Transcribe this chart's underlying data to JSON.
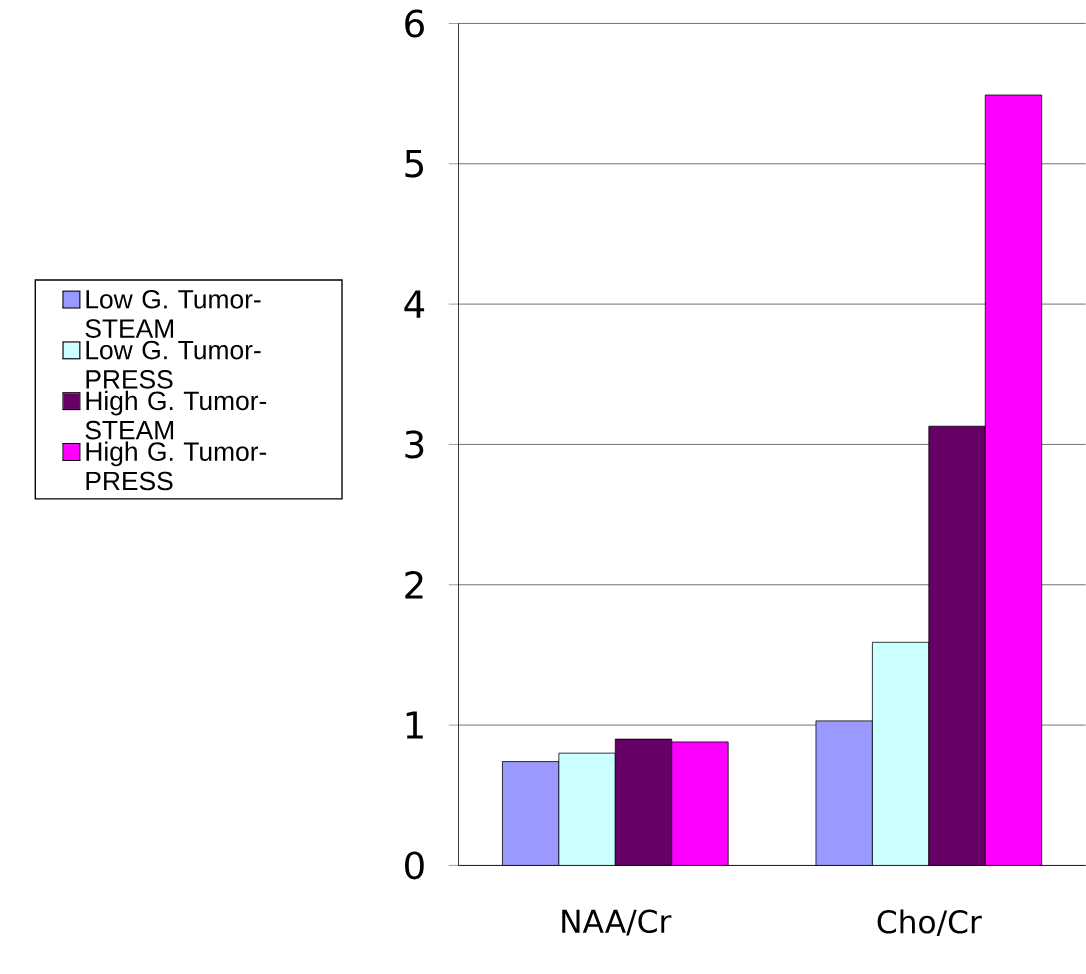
{
  "chart_data": {
    "type": "bar",
    "categories": [
      "NAA/Cr",
      "Cho/Cr"
    ],
    "series": [
      {
        "name": "Low G. Tumor-STEAM",
        "color": "#9999ff",
        "values": [
          0.74,
          1.03
        ]
      },
      {
        "name": "Low G. Tumor-PRESS",
        "color": "#ccffff",
        "values": [
          0.8,
          1.59
        ]
      },
      {
        "name": "High G. Tumor-STEAM",
        "color": "#660066",
        "values": [
          0.9,
          3.13
        ]
      },
      {
        "name": "High G. Tumor-PRESS",
        "color": "#ff00ff",
        "values": [
          0.88,
          5.49
        ]
      }
    ],
    "ylim": [
      0,
      6
    ],
    "yticks": [
      0,
      1,
      2,
      3,
      4,
      5,
      6
    ],
    "grid": "y",
    "legend": "left"
  }
}
